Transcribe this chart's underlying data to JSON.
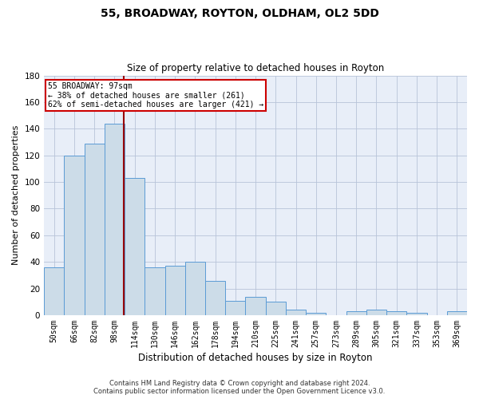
{
  "title": "55, BROADWAY, ROYTON, OLDHAM, OL2 5DD",
  "subtitle": "Size of property relative to detached houses in Royton",
  "xlabel": "Distribution of detached houses by size in Royton",
  "ylabel": "Number of detached properties",
  "bar_labels": [
    "50sqm",
    "66sqm",
    "82sqm",
    "98sqm",
    "114sqm",
    "130sqm",
    "146sqm",
    "162sqm",
    "178sqm",
    "194sqm",
    "210sqm",
    "225sqm",
    "241sqm",
    "257sqm",
    "273sqm",
    "289sqm",
    "305sqm",
    "321sqm",
    "337sqm",
    "353sqm",
    "369sqm"
  ],
  "bar_values": [
    36,
    120,
    129,
    144,
    103,
    36,
    37,
    40,
    26,
    11,
    14,
    10,
    4,
    2,
    0,
    3,
    4,
    3,
    2,
    0,
    3
  ],
  "bar_color": "#ccdce8",
  "bar_edge_color": "#5b9bd5",
  "property_label": "55 BROADWAY: 97sqm",
  "annotation_line1": "← 38% of detached houses are smaller (261)",
  "annotation_line2": "62% of semi-detached houses are larger (421) →",
  "vline_color": "#990000",
  "vline_position": 3.47,
  "annotation_box_color": "#cc0000",
  "ylim": [
    0,
    180
  ],
  "yticks": [
    0,
    20,
    40,
    60,
    80,
    100,
    120,
    140,
    160,
    180
  ],
  "grid_color": "#b8c4d8",
  "background_color": "#e8eef8",
  "footer_line1": "Contains HM Land Registry data © Crown copyright and database right 2024.",
  "footer_line2": "Contains public sector information licensed under the Open Government Licence v3.0."
}
